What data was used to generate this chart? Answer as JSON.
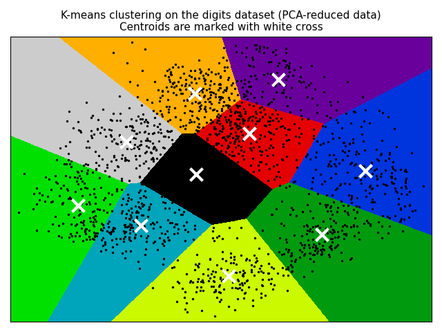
{
  "title_line1": "K-means clustering on the digits dataset (PCA-reduced data)",
  "title_line2": "Centroids are marked with white cross",
  "n_clusters": 10,
  "random_state": 42,
  "figsize": [
    6.4,
    4.8
  ],
  "dpi": 100,
  "centroid_color": "white",
  "centroid_markeredgewidth": 3,
  "point_color": "black",
  "point_size": 2,
  "colormap": "nipy_spectral",
  "title_fontsize": 11
}
